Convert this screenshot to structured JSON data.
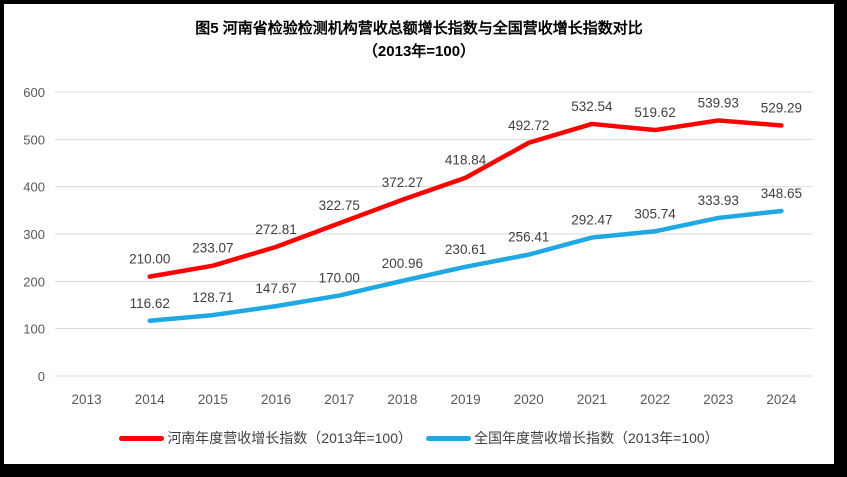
{
  "title": {
    "line1": "图5  河南省检验检测机构营收总额增长指数与全国营收增长指数对比",
    "line2": "（2013年=100）"
  },
  "chart_data": {
    "type": "line",
    "categories": [
      "2013",
      "2014",
      "2015",
      "2016",
      "2017",
      "2018",
      "2019",
      "2020",
      "2021",
      "2022",
      "2023",
      "2024"
    ],
    "series": [
      {
        "name": "河南年度营收增长指数（2013年=100）",
        "color": "#fe0000",
        "values": [
          null,
          210.0,
          233.07,
          272.81,
          322.75,
          372.27,
          418.84,
          492.72,
          532.54,
          519.62,
          539.93,
          529.29
        ]
      },
      {
        "name": "全国年度营收增长指数（2013年=100）",
        "color": "#1fa8e4",
        "values": [
          null,
          116.62,
          128.71,
          147.67,
          170.0,
          200.96,
          230.61,
          256.41,
          292.47,
          305.74,
          333.93,
          348.65
        ]
      }
    ],
    "title": "图5  河南省检验检测机构营收总额增长指数与全国营收增长指数对比（2013年=100）",
    "xlabel": "",
    "ylabel": "",
    "ylim": [
      0,
      600
    ],
    "ytick_step": 100,
    "yticks": [
      "0",
      "100",
      "200",
      "300",
      "400",
      "500",
      "600"
    ],
    "grid": true,
    "legend_position": "bottom",
    "label_decimals": 2
  },
  "style_colors": {
    "gridline": "#d9d9d9",
    "tick_label": "#595959",
    "data_label": "#404040",
    "frame_border": "#000000"
  }
}
